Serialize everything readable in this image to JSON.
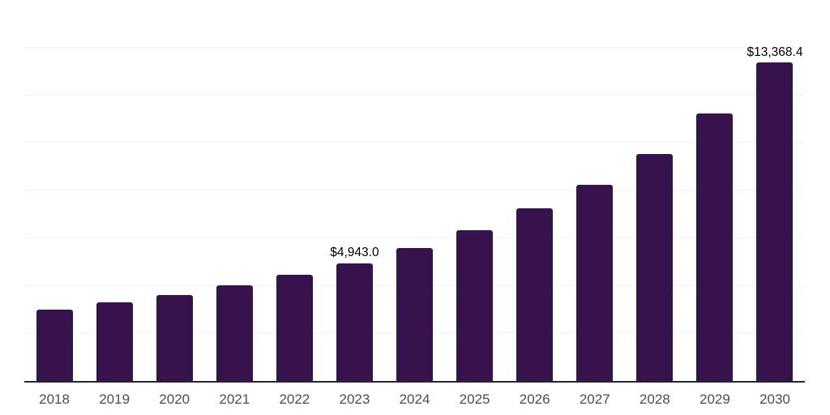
{
  "chart_data": {
    "type": "bar",
    "title": "",
    "xlabel": "",
    "ylabel": "",
    "categories": [
      "2018",
      "2019",
      "2020",
      "2021",
      "2022",
      "2023",
      "2024",
      "2025",
      "2026",
      "2027",
      "2028",
      "2029",
      "2030"
    ],
    "values": [
      2990,
      3310,
      3600,
      4015,
      4450,
      4943.0,
      5570,
      6320,
      7235,
      8255,
      9545,
      11245,
      13368.4
    ],
    "data_labels": {
      "2023": "$4,943.0",
      "2030": "$13,368.4"
    },
    "ylim": [
      0,
      16000
    ],
    "grid_interval": 2000,
    "grid": "horizontal",
    "legend_position": "none",
    "y_axis_tick_labels": "none",
    "colors": {
      "bar": "#36134D",
      "gridline": "#F2F2F2",
      "axis_line": "#26262E",
      "x_tick_label": "#4D4D4D",
      "data_label": "#000000",
      "background": "#FFFFFF"
    }
  }
}
